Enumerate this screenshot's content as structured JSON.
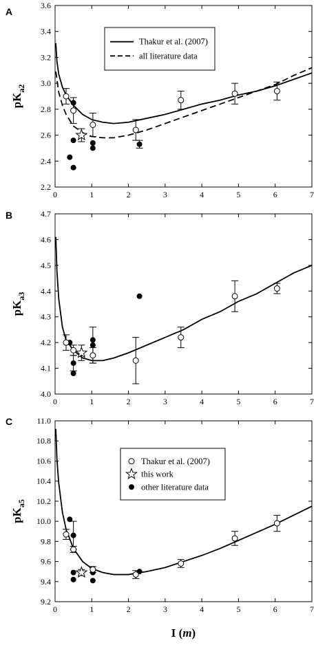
{
  "chart_data": [
    {
      "panel": "A",
      "type": "scatter",
      "ylabel_main": "pK",
      "ylabel_sub": "a2",
      "xlim": [
        0,
        7
      ],
      "ylim": [
        2.2,
        3.6
      ],
      "xticks": [
        0,
        1,
        2,
        3,
        4,
        5,
        6,
        7
      ],
      "yticks": [
        "2.2",
        "2.4",
        "2.6",
        "2.8",
        "3.0",
        "3.2",
        "3.4",
        "3.6"
      ],
      "legend": {
        "entries": [
          {
            "label": "Thakur et al. (2007)",
            "style": "solid"
          },
          {
            "label": "all literature data",
            "style": "dashed"
          }
        ]
      },
      "thakur": [
        {
          "x": 0.3,
          "y": 2.9,
          "err": 0.06
        },
        {
          "x": 0.5,
          "y": 2.79,
          "err": 0.1
        },
        {
          "x": 1.03,
          "y": 2.68,
          "err": 0.09
        },
        {
          "x": 2.2,
          "y": 2.64,
          "err": 0.08
        },
        {
          "x": 3.43,
          "y": 2.87,
          "err": 0.07
        },
        {
          "x": 4.9,
          "y": 2.92,
          "err": 0.08
        },
        {
          "x": 6.05,
          "y": 2.94,
          "err": 0.07
        }
      ],
      "this_work": [
        {
          "x": 0.72,
          "y": 2.6,
          "err": 0.05
        }
      ],
      "other_lit": [
        {
          "x": 0.4,
          "y": 2.43
        },
        {
          "x": 0.5,
          "y": 2.85
        },
        {
          "x": 0.5,
          "y": 2.56
        },
        {
          "x": 0.5,
          "y": 2.35
        },
        {
          "x": 1.03,
          "y": 2.54
        },
        {
          "x": 1.03,
          "y": 2.5
        },
        {
          "x": 2.3,
          "y": 2.53,
          "err": 0.03
        }
      ],
      "curves": [
        {
          "style": "solid",
          "points": [
            [
              0.02,
              3.31
            ],
            [
              0.05,
              3.17
            ],
            [
              0.1,
              3.07
            ],
            [
              0.2,
              2.97
            ],
            [
              0.3,
              2.91
            ],
            [
              0.5,
              2.83
            ],
            [
              0.75,
              2.76
            ],
            [
              1.0,
              2.72
            ],
            [
              1.3,
              2.7
            ],
            [
              1.6,
              2.69
            ],
            [
              2.0,
              2.7
            ],
            [
              2.5,
              2.73
            ],
            [
              3.0,
              2.76
            ],
            [
              3.5,
              2.8
            ],
            [
              4.0,
              2.84
            ],
            [
              4.5,
              2.87
            ],
            [
              5.0,
              2.91
            ],
            [
              5.5,
              2.94
            ],
            [
              6.0,
              2.98
            ],
            [
              6.5,
              3.03
            ],
            [
              7.0,
              3.08
            ]
          ]
        },
        {
          "style": "dashed",
          "points": [
            [
              0.02,
              3.09
            ],
            [
              0.1,
              2.93
            ],
            [
              0.2,
              2.83
            ],
            [
              0.3,
              2.76
            ],
            [
              0.5,
              2.67
            ],
            [
              0.75,
              2.62
            ],
            [
              1.0,
              2.59
            ],
            [
              1.3,
              2.58
            ],
            [
              1.6,
              2.58
            ],
            [
              2.0,
              2.6
            ],
            [
              2.5,
              2.64
            ],
            [
              3.0,
              2.69
            ],
            [
              3.5,
              2.74
            ],
            [
              4.0,
              2.79
            ],
            [
              4.5,
              2.84
            ],
            [
              5.0,
              2.89
            ],
            [
              5.5,
              2.94
            ],
            [
              6.0,
              2.99
            ],
            [
              6.5,
              3.06
            ],
            [
              7.0,
              3.12
            ]
          ]
        }
      ]
    },
    {
      "panel": "B",
      "type": "scatter",
      "ylabel_main": "pK",
      "ylabel_sub": "a3",
      "xlim": [
        0,
        7
      ],
      "ylim": [
        4.0,
        4.7
      ],
      "xticks": [
        0,
        1,
        2,
        3,
        4,
        5,
        6,
        7
      ],
      "yticks": [
        "4.0",
        "4.1",
        "4.2",
        "4.3",
        "4.4",
        "4.5",
        "4.6",
        "4.7"
      ],
      "thakur": [
        {
          "x": 0.3,
          "y": 4.2,
          "err": 0.03
        },
        {
          "x": 0.5,
          "y": 4.17,
          "err": 0.02
        },
        {
          "x": 1.03,
          "y": 4.15,
          "err": 0.03
        },
        {
          "x": 2.2,
          "y": 4.13,
          "err": 0.09
        },
        {
          "x": 3.43,
          "y": 4.22,
          "err": 0.04
        },
        {
          "x": 4.9,
          "y": 4.38,
          "err": 0.06
        },
        {
          "x": 6.05,
          "y": 4.41,
          "err": 0.02
        }
      ],
      "this_work": [
        {
          "x": 0.72,
          "y": 4.16,
          "err": 0.03
        }
      ],
      "other_lit": [
        {
          "x": 0.4,
          "y": 4.2
        },
        {
          "x": 0.5,
          "y": 4.12,
          "err": 0.03
        },
        {
          "x": 0.5,
          "y": 4.08
        },
        {
          "x": 1.03,
          "y": 4.21
        },
        {
          "x": 1.03,
          "y": 4.19,
          "err": 0.07
        },
        {
          "x": 2.3,
          "y": 4.38
        }
      ],
      "curves": [
        {
          "style": "solid",
          "points": [
            [
              0.02,
              4.61
            ],
            [
              0.05,
              4.48
            ],
            [
              0.1,
              4.37
            ],
            [
              0.2,
              4.26
            ],
            [
              0.3,
              4.21
            ],
            [
              0.5,
              4.17
            ],
            [
              0.75,
              4.14
            ],
            [
              1.0,
              4.13
            ],
            [
              1.3,
              4.13
            ],
            [
              1.6,
              4.14
            ],
            [
              2.0,
              4.16
            ],
            [
              2.5,
              4.19
            ],
            [
              3.0,
              4.22
            ],
            [
              3.5,
              4.25
            ],
            [
              4.0,
              4.29
            ],
            [
              4.5,
              4.32
            ],
            [
              5.0,
              4.36
            ],
            [
              5.5,
              4.39
            ],
            [
              6.0,
              4.43
            ],
            [
              6.5,
              4.47
            ],
            [
              7.0,
              4.5
            ]
          ]
        }
      ]
    },
    {
      "panel": "C",
      "type": "scatter",
      "ylabel_main": "pK",
      "ylabel_sub": "a5",
      "xlabel_main": "I (",
      "xlabel_italic": "m",
      "xlabel_close": ")",
      "xlim": [
        0,
        7
      ],
      "ylim": [
        9.2,
        11.0
      ],
      "xticks": [
        0,
        1,
        2,
        3,
        4,
        5,
        6,
        7
      ],
      "yticks": [
        "9.2",
        "9.4",
        "9.6",
        "9.8",
        "10.0",
        "10.2",
        "10.4",
        "10.6",
        "10.8",
        "11.0"
      ],
      "legend": {
        "entries": [
          {
            "label": "Thakur et al. (2007)",
            "marker": "open-circle"
          },
          {
            "label": "this work",
            "marker": "star"
          },
          {
            "label": "other literature data",
            "marker": "filled-circle"
          }
        ]
      },
      "thakur": [
        {
          "x": 0.3,
          "y": 9.87,
          "err": 0.05
        },
        {
          "x": 0.5,
          "y": 9.72,
          "err": 0.03
        },
        {
          "x": 1.03,
          "y": 9.52,
          "err": 0.03
        },
        {
          "x": 2.2,
          "y": 9.47,
          "err": 0.04
        },
        {
          "x": 3.43,
          "y": 9.58,
          "err": 0.04
        },
        {
          "x": 4.9,
          "y": 9.83,
          "err": 0.07
        },
        {
          "x": 6.05,
          "y": 9.98,
          "err": 0.08
        }
      ],
      "this_work": [
        {
          "x": 0.72,
          "y": 9.49,
          "err": 0.03
        }
      ],
      "other_lit": [
        {
          "x": 0.4,
          "y": 10.02
        },
        {
          "x": 0.5,
          "y": 9.86,
          "err": 0.14
        },
        {
          "x": 0.5,
          "y": 9.49
        },
        {
          "x": 0.5,
          "y": 9.42
        },
        {
          "x": 1.03,
          "y": 9.49
        },
        {
          "x": 1.03,
          "y": 9.41
        },
        {
          "x": 2.3,
          "y": 9.5
        }
      ],
      "curves": [
        {
          "style": "solid",
          "points": [
            [
              0.02,
              10.92
            ],
            [
              0.05,
              10.62
            ],
            [
              0.1,
              10.38
            ],
            [
              0.2,
              10.09
            ],
            [
              0.3,
              9.92
            ],
            [
              0.5,
              9.73
            ],
            [
              0.75,
              9.6
            ],
            [
              1.0,
              9.53
            ],
            [
              1.3,
              9.49
            ],
            [
              1.6,
              9.47
            ],
            [
              2.0,
              9.47
            ],
            [
              2.5,
              9.5
            ],
            [
              3.0,
              9.54
            ],
            [
              3.5,
              9.6
            ],
            [
              4.0,
              9.66
            ],
            [
              4.5,
              9.73
            ],
            [
              5.0,
              9.81
            ],
            [
              5.5,
              9.89
            ],
            [
              6.0,
              9.97
            ],
            [
              6.5,
              10.06
            ],
            [
              7.0,
              10.15
            ]
          ]
        }
      ]
    }
  ]
}
